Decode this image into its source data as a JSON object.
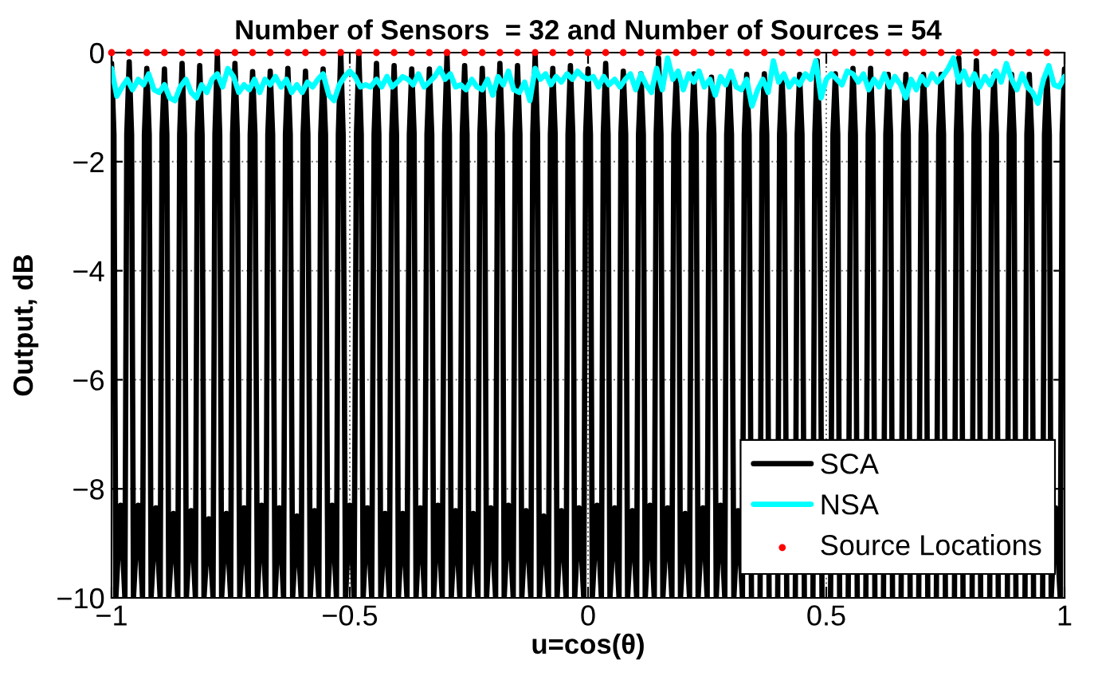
{
  "chart_data": {
    "type": "line",
    "title": "Number of Sensors  = 32 and Number of Sources = 54",
    "xlabel": "u=cos(θ)",
    "ylabel": "Output, dB",
    "xlim": [
      -1,
      1
    ],
    "ylim": [
      -10,
      0
    ],
    "xticks": [
      -1,
      -0.5,
      0,
      0.5,
      1
    ],
    "yticks": [
      -10,
      -8,
      -6,
      -4,
      -2,
      0
    ],
    "grid": true,
    "legend": "bottom right",
    "series": [
      {
        "name": "SCA",
        "color": "#000000",
        "x": [
          -1,
          -0.995,
          -0.991,
          -0.981,
          -0.972,
          -0.968,
          -0.963,
          -0.958,
          -0.954,
          -0.944,
          -0.935,
          -0.931,
          -0.926,
          -0.921,
          -0.917,
          -0.907,
          -0.898,
          -0.894,
          -0.889,
          -0.884,
          -0.88,
          -0.87,
          -0.861,
          -0.857,
          -0.852,
          -0.847,
          -0.843,
          -0.833,
          -0.824,
          -0.82,
          -0.815,
          -0.81,
          -0.806,
          -0.796,
          -0.787,
          -0.783,
          -0.778,
          -0.773,
          -0.769,
          -0.759,
          -0.75,
          -0.746,
          -0.741,
          -0.736,
          -0.731,
          -0.722,
          -0.713,
          -0.709,
          -0.704,
          -0.699,
          -0.694,
          -0.685,
          -0.676,
          -0.672,
          -0.667,
          -0.662,
          -0.657,
          -0.648,
          -0.639,
          -0.635,
          -0.63,
          -0.625,
          -0.62,
          -0.611,
          -0.602,
          -0.598,
          -0.593,
          -0.588,
          -0.583,
          -0.574,
          -0.565,
          -0.561,
          -0.556,
          -0.551,
          -0.546,
          -0.537,
          -0.528,
          -0.524,
          -0.519,
          -0.514,
          -0.509,
          -0.5,
          -0.491,
          -0.486,
          -0.481,
          -0.476,
          -0.472,
          -0.463,
          -0.454,
          -0.449,
          -0.444,
          -0.439,
          -0.435,
          -0.426,
          -0.417,
          -0.412,
          -0.407,
          -0.402,
          -0.398,
          -0.389,
          -0.38,
          -0.375,
          -0.37,
          -0.365,
          -0.361,
          -0.352,
          -0.343,
          -0.338,
          -0.333,
          -0.328,
          -0.324,
          -0.315,
          -0.306,
          -0.301,
          -0.296,
          -0.291,
          -0.287,
          -0.278,
          -0.269,
          -0.264,
          -0.259,
          -0.254,
          -0.25,
          -0.241,
          -0.231,
          -0.227,
          -0.222,
          -0.217,
          -0.213,
          -0.204,
          -0.194,
          -0.19,
          -0.185,
          -0.18,
          -0.176,
          -0.167,
          -0.157,
          -0.153,
          -0.148,
          -0.143,
          -0.139,
          -0.13,
          -0.12,
          -0.116,
          -0.111,
          -0.106,
          -0.102,
          -0.093,
          -0.083,
          -0.079,
          -0.074,
          -0.069,
          -0.065,
          -0.056,
          -0.046,
          -0.042,
          -0.037,
          -0.032,
          -0.028,
          -0.019,
          -0.009,
          -0.005,
          0,
          0.005,
          0.009,
          0.019,
          0.028,
          0.032,
          0.037,
          0.042,
          0.046,
          0.056,
          0.065,
          0.069,
          0.074,
          0.079,
          0.083,
          0.093,
          0.102,
          0.106,
          0.111,
          0.116,
          0.12,
          0.13,
          0.139,
          0.143,
          0.148,
          0.153,
          0.157,
          0.167,
          0.176,
          0.18,
          0.185,
          0.19,
          0.194,
          0.204,
          0.213,
          0.217,
          0.222,
          0.227,
          0.231,
          0.241,
          0.25,
          0.254,
          0.259,
          0.264,
          0.269,
          0.278,
          0.287,
          0.291,
          0.296,
          0.301,
          0.306,
          0.315,
          0.324,
          0.328,
          0.333,
          0.338,
          0.343,
          0.352,
          0.361,
          0.365,
          0.37,
          0.375,
          0.38,
          0.389,
          0.398,
          0.402,
          0.407,
          0.412,
          0.417,
          0.426,
          0.435,
          0.439,
          0.444,
          0.449,
          0.454,
          0.463,
          0.472,
          0.476,
          0.481,
          0.486,
          0.491,
          0.5,
          0.509,
          0.514,
          0.519,
          0.524,
          0.528,
          0.537,
          0.546,
          0.551,
          0.556,
          0.561,
          0.565,
          0.574,
          0.583,
          0.588,
          0.593,
          0.598,
          0.602,
          0.611,
          0.62,
          0.625,
          0.63,
          0.635,
          0.639,
          0.648,
          0.657,
          0.662,
          0.667,
          0.672,
          0.676,
          0.685,
          0.694,
          0.699,
          0.704,
          0.709,
          0.713,
          0.722,
          0.731,
          0.736,
          0.741,
          0.746,
          0.75,
          0.759,
          0.769,
          0.773,
          0.778,
          0.783,
          0.787,
          0.796,
          0.806,
          0.81,
          0.815,
          0.82,
          0.824,
          0.833,
          0.843,
          0.847,
          0.852,
          0.857,
          0.861,
          0.87,
          0.88,
          0.884,
          0.889,
          0.894,
          0.898,
          0.907,
          0.917,
          0.921,
          0.926,
          0.931,
          0.935,
          0.944,
          0.954,
          0.958,
          0.963,
          0.968,
          0.972,
          0.981,
          0.991,
          0.995,
          1
        ],
        "values": [
          -0.2,
          -1.5,
          -10,
          -8.3,
          -10,
          -1.5,
          -0.17,
          -1.5,
          -10,
          -8.3,
          -10,
          -1.5,
          -0.29,
          -1.5,
          -10,
          -8.35,
          -10,
          -1.5,
          -0.3,
          -1.5,
          -10,
          -8.45,
          -10,
          -1.5,
          -0.2,
          -1.5,
          -10,
          -8.4,
          -10,
          -1.5,
          -0.24,
          -1.5,
          -10,
          -8.55,
          -10,
          -1.5,
          -0.05,
          -1.5,
          -10,
          -8.45,
          -10,
          -1.5,
          -0.2,
          -1.5,
          -10,
          -8.35,
          -10,
          -1.5,
          -0.35,
          -1.5,
          -10,
          -8.3,
          -10,
          -1.5,
          -0.34,
          -1.5,
          -10,
          -8.35,
          -10,
          -1.5,
          -0.29,
          -1.5,
          -10,
          -8.5,
          -10,
          -1.5,
          -0.34,
          -1.5,
          -10,
          -8.4,
          -10,
          -1.5,
          -0.3,
          -1.5,
          -10,
          -8.3,
          -10,
          -1.5,
          0,
          -1.5,
          -10,
          -8.3,
          -10,
          -1.5,
          -0.05,
          -1.5,
          -10,
          -8.35,
          -10,
          -1.5,
          -0.2,
          -1.5,
          -10,
          -8.45,
          -10,
          -1.5,
          -0.24,
          -1.5,
          -10,
          -8.45,
          -10,
          -1.5,
          -0.3,
          -1.5,
          -10,
          -8.35,
          -10,
          -1.5,
          -0.3,
          -1.5,
          -10,
          -8.3,
          -10,
          -1.5,
          -0.05,
          -1.5,
          -10,
          -8.4,
          -10,
          -1.5,
          -0.24,
          -1.5,
          -10,
          -8.45,
          -10,
          -1.5,
          -0.29,
          -1.5,
          -10,
          -8.35,
          -10,
          -1.5,
          -0.2,
          -1.5,
          -10,
          -8.3,
          -10,
          -1.5,
          -0.24,
          -1.5,
          -10,
          -8.4,
          -10,
          -1.5,
          -0.05,
          -1.5,
          -10,
          -8.5,
          -10,
          -1.5,
          -0.29,
          -1.5,
          -10,
          -8.4,
          -10,
          -1.5,
          -0.24,
          -1.5,
          -10,
          -8.35,
          -10,
          -1.5,
          -0.3,
          -1.5,
          -10,
          -8.3,
          -10,
          -1.5,
          -0.2,
          -1.5,
          -10,
          -8.35,
          -10,
          -1.5,
          -0.34,
          -1.5,
          -10,
          -8.4,
          -10,
          -1.5,
          -0.39,
          -1.5,
          -10,
          -8.3,
          -10,
          -1.5,
          -0.1,
          -1.5,
          -10,
          -8.35,
          -10,
          -1.5,
          -0.45,
          -1.5,
          -10,
          -8.45,
          -10,
          -1.5,
          -0.39,
          -1.5,
          -10,
          -8.35,
          -10,
          -1.5,
          -0.45,
          -1.5,
          -10,
          -8.3,
          -10,
          -1.5,
          -0.45,
          -1.5,
          -10,
          -8.4,
          -10,
          -1.5,
          -0.4,
          -1.5,
          -10,
          null,
          -10,
          -1.5,
          -0.39,
          -1.5,
          -10,
          null,
          -10,
          -1.5,
          -0.45,
          -1.5,
          -10,
          null,
          -10,
          -1.5,
          -0.4,
          -1.5,
          -10,
          null,
          -10,
          -1.5,
          -0.15,
          -1.5,
          -10,
          null,
          -10,
          -1.5,
          -0.39,
          -1.5,
          -10,
          null,
          -10,
          -1.5,
          -0.29,
          -1.5,
          -10,
          null,
          -10,
          -1.5,
          -0.29,
          -1.5,
          -10,
          null,
          -10,
          -1.5,
          -0.4,
          -1.5,
          -10,
          null,
          -10,
          -1.5,
          -0.4,
          -1.5,
          -10,
          null,
          -10,
          -1.5,
          -0.4,
          -1.5,
          -10,
          null,
          -10,
          -1.5,
          -0.4,
          -1.5,
          -10,
          null,
          -10,
          -1.5,
          -0.1,
          -1.5,
          -10,
          null,
          -10,
          -1.5,
          -0.15,
          -1.5,
          -10,
          null,
          -10,
          -1.5,
          -0.39,
          -1.5,
          -10,
          null,
          -10,
          -1.5,
          -0.4,
          -1.5,
          -10,
          null,
          -10,
          -1.5,
          -0.4,
          -1.5,
          -10,
          null,
          -10,
          -1.5,
          -0.4,
          -1.5,
          -10,
          -8.35,
          -10,
          -1.5,
          -0.3
        ]
      },
      {
        "name": "NSA",
        "color": "#00ffff",
        "x": [
          -1,
          -0.989,
          -0.978,
          -0.967,
          -0.956,
          -0.944,
          -0.933,
          -0.922,
          -0.911,
          -0.9,
          -0.889,
          -0.878,
          -0.867,
          -0.856,
          -0.844,
          -0.833,
          -0.822,
          -0.811,
          -0.8,
          -0.789,
          -0.778,
          -0.767,
          -0.756,
          -0.744,
          -0.733,
          -0.722,
          -0.711,
          -0.7,
          -0.689,
          -0.678,
          -0.667,
          -0.656,
          -0.644,
          -0.633,
          -0.622,
          -0.611,
          -0.6,
          -0.589,
          -0.578,
          -0.567,
          -0.556,
          -0.544,
          -0.533,
          -0.522,
          -0.511,
          -0.5,
          -0.489,
          -0.478,
          -0.467,
          -0.456,
          -0.444,
          -0.433,
          -0.422,
          -0.411,
          -0.4,
          -0.389,
          -0.378,
          -0.367,
          -0.356,
          -0.344,
          -0.333,
          -0.322,
          -0.311,
          -0.3,
          -0.289,
          -0.278,
          -0.267,
          -0.256,
          -0.244,
          -0.233,
          -0.222,
          -0.211,
          -0.2,
          -0.189,
          -0.178,
          -0.167,
          -0.156,
          -0.144,
          -0.133,
          -0.122,
          -0.111,
          -0.1,
          -0.089,
          -0.078,
          -0.067,
          -0.056,
          -0.044,
          -0.033,
          -0.022,
          -0.011,
          0,
          0.011,
          0.022,
          0.033,
          0.044,
          0.056,
          0.067,
          0.078,
          0.089,
          0.1,
          0.111,
          0.122,
          0.133,
          0.144,
          0.156,
          0.167,
          0.178,
          0.189,
          0.2,
          0.211,
          0.222,
          0.233,
          0.244,
          0.256,
          0.267,
          0.278,
          0.289,
          0.3,
          0.311,
          0.322,
          0.333,
          0.344,
          0.356,
          0.367,
          0.378,
          0.389,
          0.4,
          0.411,
          0.422,
          0.433,
          0.444,
          0.456,
          0.467,
          0.478,
          0.489,
          0.5,
          0.511,
          0.522,
          0.533,
          0.544,
          0.556,
          0.567,
          0.578,
          0.589,
          0.6,
          0.611,
          0.622,
          0.633,
          0.644,
          0.656,
          0.667,
          0.678,
          0.689,
          0.7,
          0.711,
          0.722,
          0.733,
          0.744,
          0.756,
          0.767,
          0.778,
          0.789,
          0.8,
          0.811,
          0.822,
          0.833,
          0.844,
          0.856,
          0.867,
          0.878,
          0.889,
          0.9,
          0.911,
          0.922,
          0.933,
          0.944,
          0.956,
          0.967,
          0.978,
          0.989,
          1
        ],
        "values": [
          -0.29,
          -0.8,
          -0.63,
          -0.49,
          -0.68,
          -0.49,
          -0.59,
          -0.39,
          -0.68,
          -0.73,
          -0.59,
          -0.83,
          -0.88,
          -0.63,
          -0.49,
          -0.73,
          -0.83,
          -0.59,
          -0.73,
          -0.49,
          -0.39,
          -0.63,
          -0.29,
          -0.44,
          -0.73,
          -0.59,
          -0.68,
          -0.49,
          -0.73,
          -0.49,
          -0.59,
          -0.44,
          -0.63,
          -0.49,
          -0.73,
          -0.59,
          -0.73,
          -0.54,
          -0.63,
          -0.49,
          -0.39,
          -0.78,
          -0.88,
          -0.59,
          -0.44,
          -0.34,
          -0.44,
          -0.63,
          -0.59,
          -0.63,
          -0.49,
          -0.63,
          -0.44,
          -0.63,
          -0.54,
          -0.44,
          -0.49,
          -0.59,
          -0.39,
          -0.63,
          -0.54,
          -0.44,
          -0.29,
          -0.49,
          -0.39,
          -0.63,
          -0.59,
          -0.68,
          -0.49,
          -0.63,
          -0.68,
          -0.49,
          -0.78,
          -0.44,
          -0.59,
          -0.34,
          -0.68,
          -0.73,
          -0.54,
          -0.88,
          -0.29,
          -0.49,
          -0.39,
          -0.59,
          -0.44,
          -0.54,
          -0.39,
          -0.49,
          -0.34,
          -0.44,
          -0.49,
          -0.44,
          -0.63,
          -0.44,
          -0.59,
          -0.49,
          -0.63,
          -0.49,
          -0.39,
          -0.68,
          -0.39,
          -0.59,
          -0.73,
          -0.29,
          -0.68,
          -0.1,
          -0.49,
          -0.34,
          -0.68,
          -0.39,
          -0.54,
          -0.34,
          -0.63,
          -0.49,
          -0.78,
          -0.44,
          -0.59,
          -0.34,
          -0.63,
          -0.68,
          -0.49,
          -0.98,
          -0.68,
          -0.49,
          -0.73,
          -0.15,
          -0.54,
          -0.39,
          -0.63,
          -0.49,
          -0.59,
          -0.39,
          -0.49,
          -0.15,
          -0.83,
          -0.49,
          -0.39,
          -0.49,
          -0.59,
          -0.34,
          -0.39,
          -0.54,
          -0.39,
          -0.68,
          -0.49,
          -0.63,
          -0.39,
          -0.63,
          -0.44,
          -0.59,
          -0.83,
          -0.49,
          -0.68,
          -0.44,
          -0.59,
          -0.39,
          -0.54,
          -0.44,
          -0.29,
          -0.1,
          -0.54,
          -0.34,
          -0.59,
          -0.39,
          -0.63,
          -0.44,
          -0.59,
          -0.34,
          -0.54,
          -0.2,
          -0.49,
          -0.68,
          -0.39,
          -0.63,
          -0.73,
          -0.93,
          -0.49,
          -0.24,
          -0.59,
          -0.63,
          -0.44
        ]
      },
      {
        "name": "Source Locations",
        "type": "scatter",
        "marker": "circle",
        "color": "#ff0000",
        "x": [
          -1,
          -0.963,
          -0.926,
          -0.889,
          -0.852,
          -0.815,
          -0.778,
          -0.741,
          -0.704,
          -0.667,
          -0.63,
          -0.593,
          -0.556,
          -0.519,
          -0.481,
          -0.444,
          -0.407,
          -0.37,
          -0.333,
          -0.296,
          -0.259,
          -0.222,
          -0.185,
          -0.148,
          -0.111,
          -0.074,
          -0.037,
          0,
          0.037,
          0.074,
          0.111,
          0.148,
          0.185,
          0.222,
          0.259,
          0.296,
          0.333,
          0.37,
          0.407,
          0.444,
          0.481,
          0.519,
          0.556,
          0.593,
          0.63,
          0.667,
          0.704,
          0.741,
          0.778,
          0.815,
          0.852,
          0.889,
          0.926,
          0.963
        ],
        "values": [
          0,
          0,
          0,
          0,
          0,
          0,
          0,
          0,
          0,
          0,
          0,
          0,
          0,
          0,
          0,
          0,
          0,
          0,
          0,
          0,
          0,
          0,
          0,
          0,
          0,
          0,
          0,
          0,
          0,
          0,
          0,
          0,
          0,
          0,
          0,
          0,
          0,
          0,
          0,
          0,
          0,
          0,
          0,
          0,
          0,
          0,
          0,
          0,
          0,
          0,
          0,
          0,
          0,
          0
        ]
      }
    ]
  }
}
